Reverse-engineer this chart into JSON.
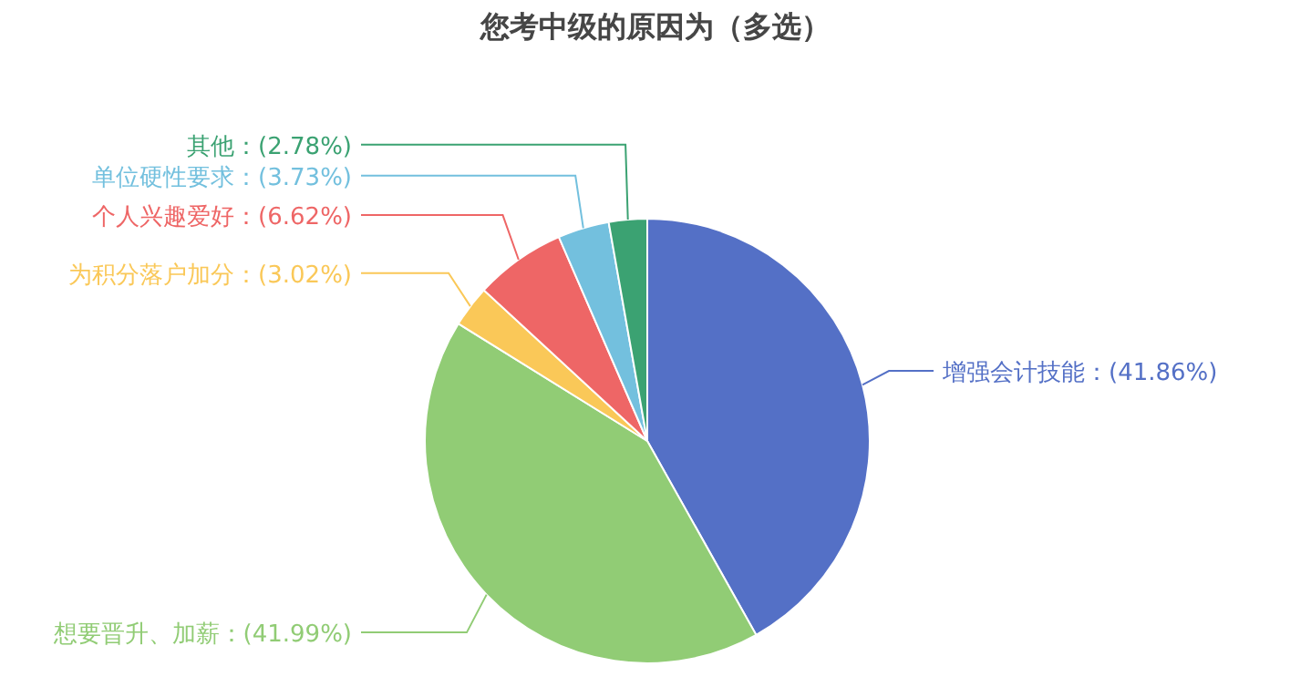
{
  "chart_data": {
    "type": "pie",
    "title": "您考中级的原因为（多选）",
    "categories": [
      "增强会计技能",
      "想要晋升、加薪",
      "为积分落户加分",
      "个人兴趣爱好",
      "单位硬性要求",
      "其他"
    ],
    "values": [
      41.86,
      41.99,
      3.02,
      6.62,
      3.73,
      2.78
    ],
    "value_labels": [
      "(41.86%)",
      "(41.99%)",
      "(3.02%)",
      "(6.62%)",
      "(3.73%)",
      "(2.78%)"
    ],
    "colors": [
      "#5470c6",
      "#91cc75",
      "#fac858",
      "#ee6666",
      "#73c0de",
      "#3ba272"
    ]
  }
}
